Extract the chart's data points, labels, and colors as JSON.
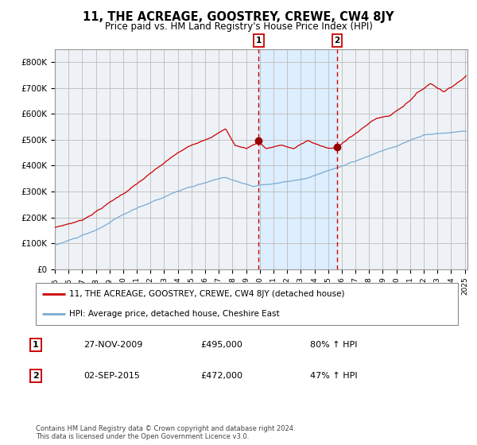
{
  "title": "11, THE ACREAGE, GOOSTREY, CREWE, CW4 8JY",
  "subtitle": "Price paid vs. HM Land Registry's House Price Index (HPI)",
  "legend_line1": "11, THE ACREAGE, GOOSTREY, CREWE, CW4 8JY (detached house)",
  "legend_line2": "HPI: Average price, detached house, Cheshire East",
  "sale1_label": "1",
  "sale1_date": "27-NOV-2009",
  "sale1_price": "£495,000",
  "sale1_hpi": "80% ↑ HPI",
  "sale1_year": 2009.92,
  "sale1_value": 495000,
  "sale2_label": "2",
  "sale2_date": "02-SEP-2015",
  "sale2_price": "£472,000",
  "sale2_hpi": "47% ↑ HPI",
  "sale2_year": 2015.67,
  "sale2_value": 472000,
  "red_line_color": "#cc0000",
  "blue_line_color": "#7aaad0",
  "shade_color": "#ddeeff",
  "grid_color": "#bbbbbb",
  "background_color": "#ffffff",
  "plot_bg_color": "#eef2f7",
  "footer": "Contains HM Land Registry data © Crown copyright and database right 2024.\nThis data is licensed under the Open Government Licence v3.0.",
  "ylim": [
    0,
    850000
  ],
  "yticks": [
    0,
    100000,
    200000,
    300000,
    400000,
    500000,
    600000,
    700000,
    800000
  ],
  "ytick_labels": [
    "£0",
    "£100K",
    "£200K",
    "£300K",
    "£400K",
    "£500K",
    "£600K",
    "£700K",
    "£800K"
  ],
  "start_year": 1995,
  "end_year": 2025
}
